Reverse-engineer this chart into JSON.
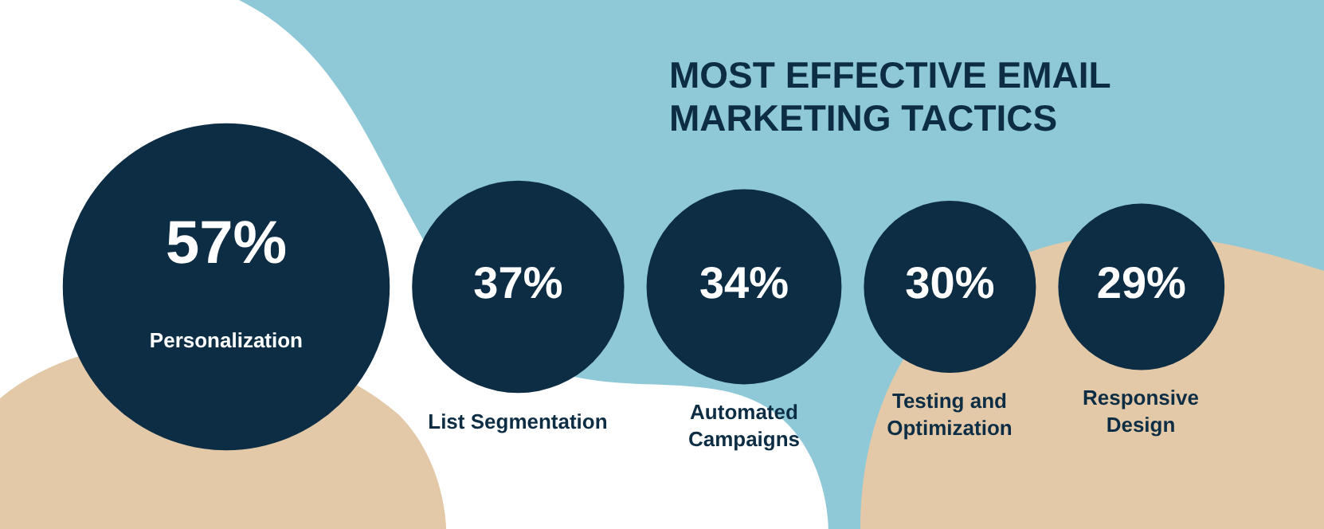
{
  "chart_data": {
    "type": "other",
    "title": "MOST EFFECTIVE EMAIL MARKETING TACTICS",
    "categories": [
      "Personalization",
      "List Segmentation",
      "Automated Campaigns",
      "Testing and Optimization",
      "Responsive Design"
    ],
    "values": [
      57,
      37,
      34,
      30,
      29
    ],
    "value_labels": [
      "57%",
      "37%",
      "34%",
      "30%",
      "29%"
    ],
    "color": "#0d2d45"
  }
}
